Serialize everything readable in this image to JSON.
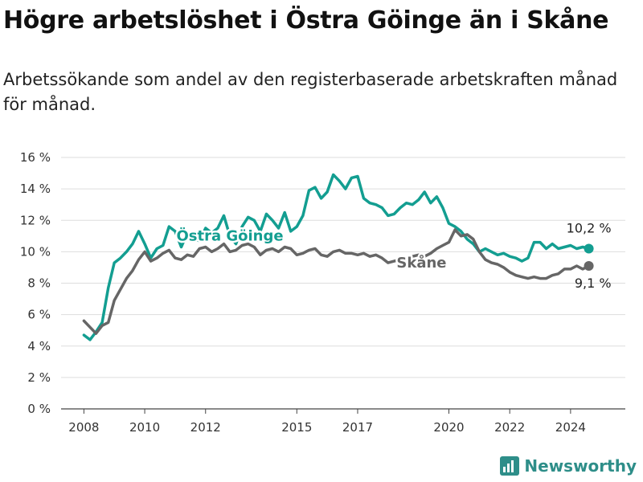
{
  "header": {
    "title": "Högre arbetslöshet i Östra Göinge än i Skåne",
    "subtitle": "Arbetssökande som andel av den registerbaserade arbetskraften månad för månad."
  },
  "brand": {
    "name": "Newsworthy"
  },
  "colors": {
    "teal": "#139e91",
    "gray": "#666666",
    "grid": "#dddddd"
  },
  "chart_data": {
    "type": "line",
    "title": "Högre arbetslöshet i Östra Göinge än i Skåne",
    "xlabel": "",
    "ylabel": "",
    "x_ticks": [
      "2008",
      "2010",
      "2012",
      "2015",
      "2017",
      "2020",
      "2022",
      "2024"
    ],
    "x_tick_values": [
      2008,
      2010,
      2012,
      2015,
      2017,
      2020,
      2022,
      2024
    ],
    "xlim": [
      2007.25,
      2025.8
    ],
    "y_ticks": [
      "0 %",
      "2 %",
      "4 %",
      "6 %",
      "8 %",
      "10 %",
      "12 %",
      "14 %",
      "16 %"
    ],
    "y_tick_values": [
      0,
      2,
      4,
      6,
      8,
      10,
      12,
      14,
      16
    ],
    "ylim": [
      0,
      16
    ],
    "grid": true,
    "series": [
      {
        "name": "Östra Göinge",
        "label": "Östra Göinge",
        "end_label": "10,2 %",
        "end_value": 10.2,
        "x": [
          2008.0,
          2008.2,
          2008.4,
          2008.6,
          2008.8,
          2009.0,
          2009.2,
          2009.4,
          2009.6,
          2009.8,
          2010.0,
          2010.2,
          2010.4,
          2010.6,
          2010.8,
          2011.0,
          2011.2,
          2011.4,
          2011.6,
          2011.8,
          2012.0,
          2012.2,
          2012.4,
          2012.6,
          2012.8,
          2013.0,
          2013.2,
          2013.4,
          2013.6,
          2013.8,
          2014.0,
          2014.2,
          2014.4,
          2014.6,
          2014.8,
          2015.0,
          2015.2,
          2015.4,
          2015.6,
          2015.8,
          2016.0,
          2016.2,
          2016.4,
          2016.6,
          2016.8,
          2017.0,
          2017.2,
          2017.4,
          2017.6,
          2017.8,
          2018.0,
          2018.2,
          2018.4,
          2018.6,
          2018.8,
          2019.0,
          2019.2,
          2019.4,
          2019.6,
          2019.8,
          2020.0,
          2020.2,
          2020.4,
          2020.6,
          2020.8,
          2021.0,
          2021.2,
          2021.4,
          2021.6,
          2021.8,
          2022.0,
          2022.2,
          2022.4,
          2022.6,
          2022.8,
          2023.0,
          2023.2,
          2023.4,
          2023.6,
          2023.8,
          2024.0,
          2024.2,
          2024.4,
          2024.6
        ],
        "values": [
          4.7,
          4.4,
          4.9,
          5.5,
          7.7,
          9.3,
          9.6,
          10.0,
          10.5,
          11.3,
          10.5,
          9.6,
          10.2,
          10.4,
          11.6,
          11.3,
          10.3,
          11.2,
          10.8,
          10.7,
          11.5,
          11.2,
          11.5,
          12.3,
          11.0,
          10.5,
          11.6,
          12.2,
          12.0,
          11.3,
          12.4,
          12.0,
          11.5,
          12.5,
          11.3,
          11.6,
          12.3,
          13.9,
          14.1,
          13.4,
          13.8,
          14.9,
          14.5,
          14.0,
          14.7,
          14.8,
          13.4,
          13.1,
          13.0,
          12.8,
          12.3,
          12.4,
          12.8,
          13.1,
          13.0,
          13.3,
          13.8,
          13.1,
          13.5,
          12.8,
          11.8,
          11.6,
          11.3,
          10.8,
          10.5,
          10.0,
          10.2,
          10.0,
          9.8,
          9.9,
          9.7,
          9.6,
          9.4,
          9.6,
          10.6,
          10.6,
          10.2,
          10.5,
          10.2,
          10.3,
          10.4,
          10.2,
          10.3,
          10.2
        ]
      },
      {
        "name": "Skåne",
        "label": "Skåne",
        "end_label": "9,1 %",
        "end_value": 9.1,
        "x": [
          2008.0,
          2008.2,
          2008.4,
          2008.6,
          2008.8,
          2009.0,
          2009.2,
          2009.4,
          2009.6,
          2009.8,
          2010.0,
          2010.2,
          2010.4,
          2010.6,
          2010.8,
          2011.0,
          2011.2,
          2011.4,
          2011.6,
          2011.8,
          2012.0,
          2012.2,
          2012.4,
          2012.6,
          2012.8,
          2013.0,
          2013.2,
          2013.4,
          2013.6,
          2013.8,
          2014.0,
          2014.2,
          2014.4,
          2014.6,
          2014.8,
          2015.0,
          2015.2,
          2015.4,
          2015.6,
          2015.8,
          2016.0,
          2016.2,
          2016.4,
          2016.6,
          2016.8,
          2017.0,
          2017.2,
          2017.4,
          2017.6,
          2017.8,
          2018.0,
          2018.2,
          2018.4,
          2018.6,
          2018.8,
          2019.0,
          2019.2,
          2019.4,
          2019.6,
          2019.8,
          2020.0,
          2020.2,
          2020.4,
          2020.6,
          2020.8,
          2021.0,
          2021.2,
          2021.4,
          2021.6,
          2021.8,
          2022.0,
          2022.2,
          2022.4,
          2022.6,
          2022.8,
          2023.0,
          2023.2,
          2023.4,
          2023.6,
          2023.8,
          2024.0,
          2024.2,
          2024.4,
          2024.6
        ],
        "values": [
          5.6,
          5.2,
          4.8,
          5.3,
          5.5,
          6.9,
          7.6,
          8.3,
          8.8,
          9.5,
          10.0,
          9.4,
          9.6,
          9.9,
          10.1,
          9.6,
          9.5,
          9.8,
          9.7,
          10.2,
          10.3,
          10.0,
          10.2,
          10.5,
          10.0,
          10.1,
          10.4,
          10.5,
          10.3,
          9.8,
          10.1,
          10.2,
          10.0,
          10.3,
          10.2,
          9.8,
          9.9,
          10.1,
          10.2,
          9.8,
          9.7,
          10.0,
          10.1,
          9.9,
          9.9,
          9.8,
          9.9,
          9.7,
          9.8,
          9.6,
          9.3,
          9.4,
          9.5,
          9.6,
          9.7,
          9.8,
          9.7,
          9.9,
          10.2,
          10.4,
          10.6,
          11.4,
          11.0,
          11.1,
          10.8,
          10.0,
          9.5,
          9.3,
          9.2,
          9.0,
          8.7,
          8.5,
          8.4,
          8.3,
          8.4,
          8.3,
          8.3,
          8.5,
          8.6,
          8.9,
          8.9,
          9.1,
          8.9,
          9.1
        ]
      }
    ]
  }
}
